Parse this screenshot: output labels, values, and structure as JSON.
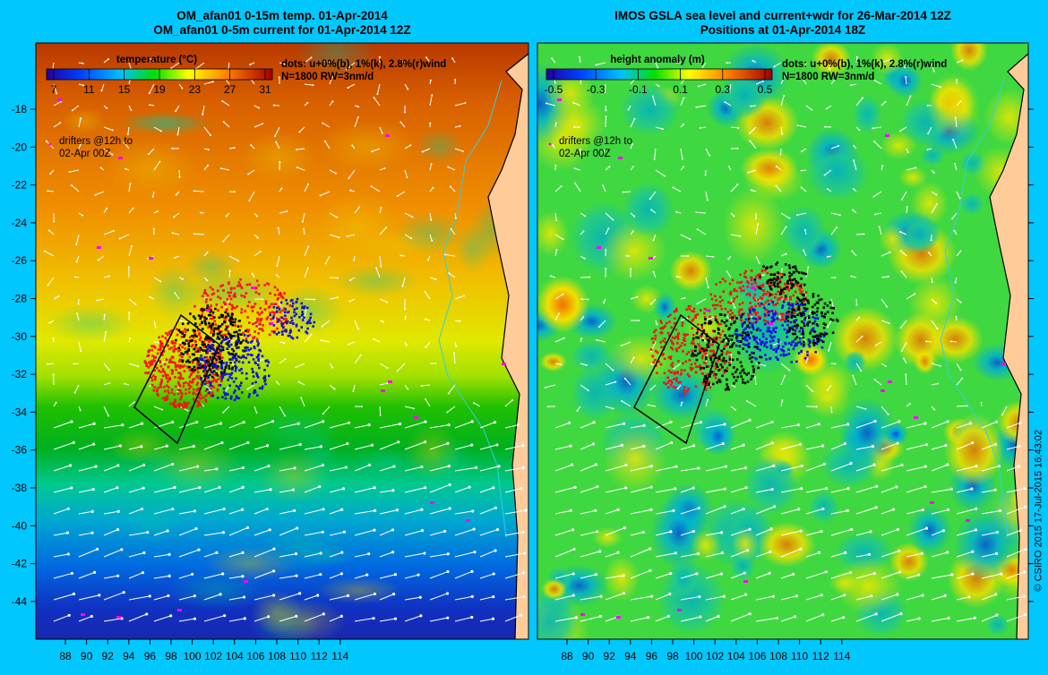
{
  "panels": [
    {
      "title_line1": "OM_afan01 0-15m temp. 01-Apr-2014",
      "title_line2": "OM_afan01 0-5m current for 01-Apr-2014 12Z",
      "colorbar_title": "temperature (°C)",
      "colorbar_ticks": [
        "7",
        "11",
        "15",
        "19",
        "23",
        "27",
        "31"
      ],
      "dots_line1": "dots: u+0%(b), 1%(k), 2.8%(r)wind",
      "dots_line2": "N=1800  RW=3nm/d",
      "drifters_line1": "drifters @12h to",
      "drifters_line2": "02-Apr 00Z",
      "colors": {
        "land": "#ffcc99",
        "coast": "#30d0e0",
        "warm": "#c84000",
        "mid": "#e8e800",
        "cool": "#00b000",
        "cold": "#1040e0",
        "colorbar": [
          "#2000a0",
          "#0040ff",
          "#00c0ff",
          "#00e000",
          "#ffff00",
          "#ff8000",
          "#a00000"
        ]
      }
    },
    {
      "title_line1": "IMOS GSLA sea level and current+wdr for 26-Mar-2014 12Z",
      "title_line2": "Positions at 01-Apr-2014 18Z",
      "colorbar_title": "height anomaly (m)",
      "colorbar_ticks": [
        "-0.5",
        "-0.3",
        "-0.1",
        "0.1",
        "0.3",
        "0.5"
      ],
      "dots_line1": "dots: u+0%(b), 1%(k), 2.8%(r)wind",
      "dots_line2": "N=1800  RW=3nm/d",
      "drifters_line1": "drifters @12h to",
      "drifters_line2": "02-Apr 00Z",
      "colors": {
        "land": "#ffcc99",
        "coast": "#30d0e0",
        "base": "#40d840",
        "high": "#f0e000",
        "peak": "#f07000",
        "low": "#10c0a0",
        "colorbar": [
          "#2000a0",
          "#0040ff",
          "#00c0ff",
          "#00e000",
          "#ffff00",
          "#ff8000",
          "#c00000"
        ]
      }
    }
  ],
  "x_ticks": [
    "88",
    "90",
    "92",
    "94",
    "96",
    "98",
    "100",
    "102",
    "104",
    "106",
    "108",
    "110",
    "112",
    "114"
  ],
  "y_ticks": [
    "-18",
    "-20",
    "-22",
    "-24",
    "-26",
    "-28",
    "-30",
    "-32",
    "-34",
    "-36",
    "-38",
    "-40",
    "-42",
    "-44"
  ],
  "credit": "© CSIRO 2015   17-Jul-2015 16:43:02"
}
